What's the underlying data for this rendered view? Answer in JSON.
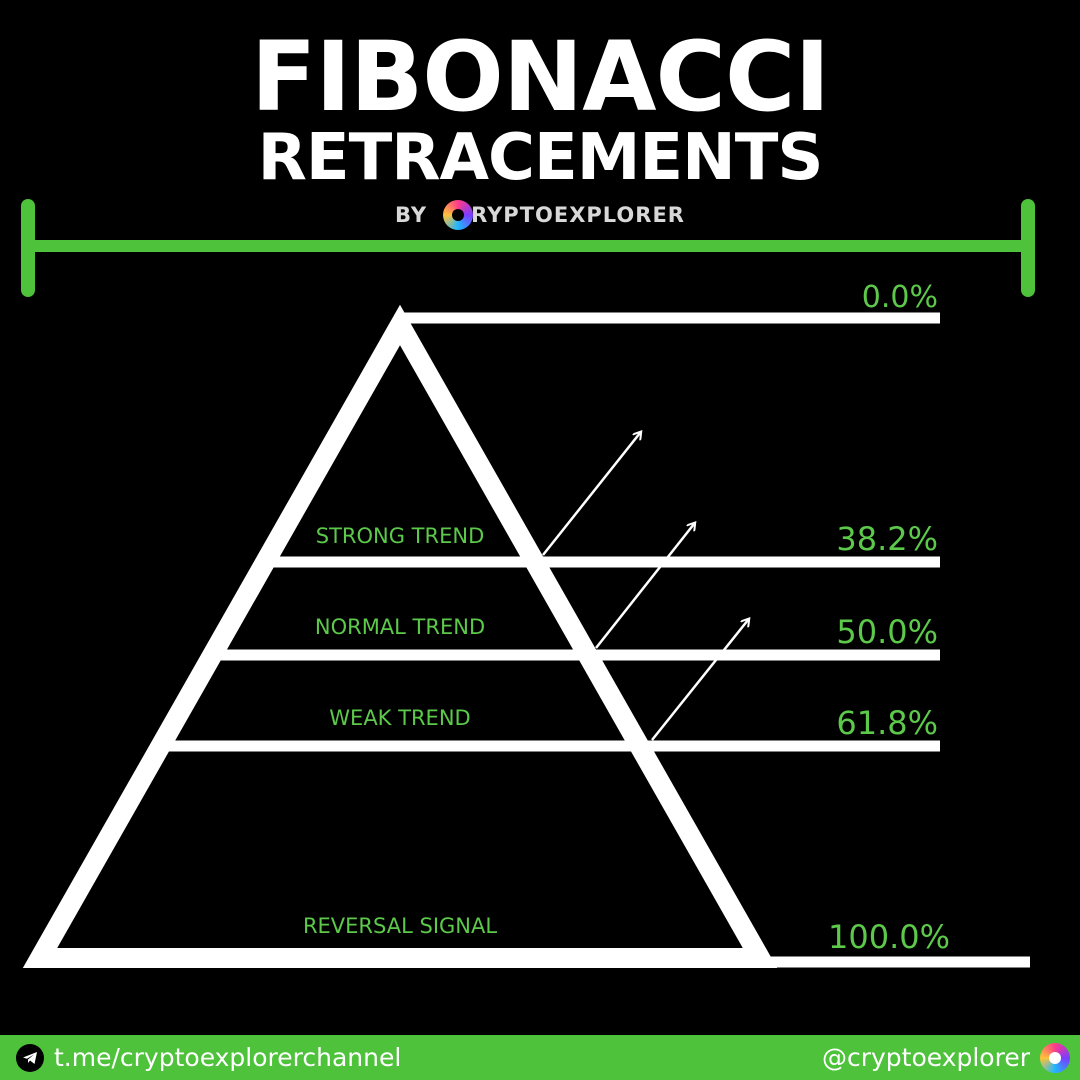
{
  "title": {
    "line1": "FIBONACCI",
    "line2": "RETRACEMENTS",
    "byline_prefix": "BY",
    "brand": "RYPTOEXPLORER"
  },
  "levels": [
    {
      "value": 0.0,
      "label": "0.0%"
    },
    {
      "value": 38.2,
      "label": "38.2%"
    },
    {
      "value": 50.0,
      "label": "50.0%"
    },
    {
      "value": 61.8,
      "label": "61.8%"
    },
    {
      "value": 100.0,
      "label": "100.0%"
    }
  ],
  "zones": [
    "STRONG TREND",
    "NORMAL TREND",
    "WEAK TREND",
    "REVERSAL SIGNAL"
  ],
  "colors": {
    "accent": "#4dc23a",
    "label": "#5cc94a",
    "line": "#ffffff",
    "background": "#000000"
  },
  "footer": {
    "channel": "t.me/cryptoexplorerchannel",
    "handle": "@cryptoexplorer",
    "channel_icon": "telegram-icon",
    "brand_icon": "cryptoexplorer-logo-icon"
  }
}
